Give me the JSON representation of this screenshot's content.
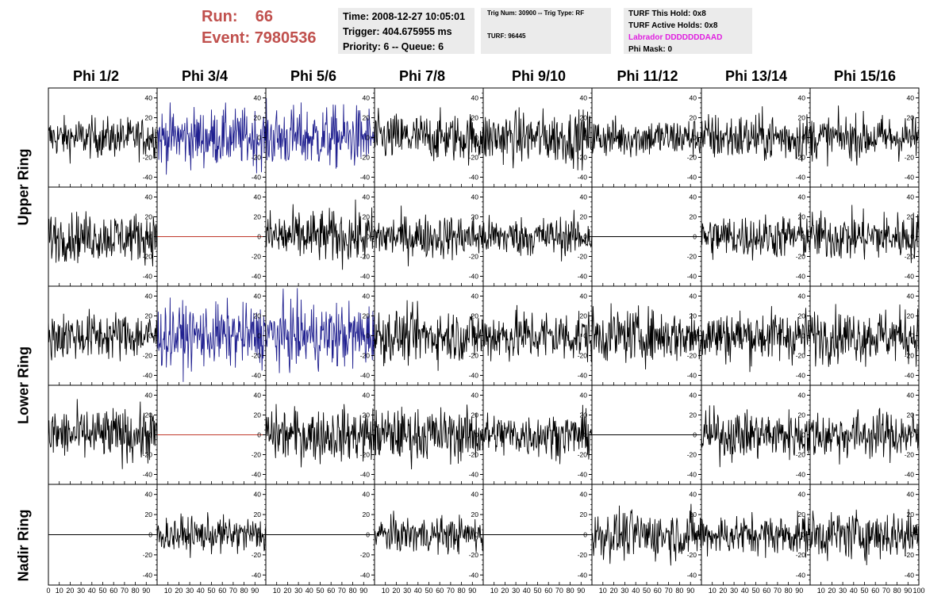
{
  "header": {
    "run_label": "Run:",
    "run_value": "66",
    "event_label": "Event:",
    "event_value": "7980536",
    "time_line": "Time: 2008-12-27 10:05:01",
    "trigger_line": "Trigger: 404.675955 ms",
    "priority_line": "Priority: 6 -- Queue: 6",
    "trig_num_line": "Trig Num: 30900 -- Trig Type: RF",
    "turf_line": "TURF: 96445",
    "turf_this_hold": "TURF This Hold: 0x8",
    "turf_active_holds": "TURF Active Holds: 0x8",
    "labrador": "Labrador DDDDDDDAAD",
    "phi_mask": "Phi Mask: 0"
  },
  "columns": [
    "Phi 1/2",
    "Phi 3/4",
    "Phi 5/6",
    "Phi 7/8",
    "Phi 9/10",
    "Phi 11/12",
    "Phi 13/14",
    "Phi 15/16"
  ],
  "rings": [
    "Upper Ring",
    "Lower Ring",
    "Nadir Ring"
  ],
  "colors": {
    "black_trace": "#000000",
    "blue_trace": "#1f1f8f",
    "red_trace": "#c0392b",
    "run_text": "#c0504d",
    "labrador_text": "#e020e0",
    "box_bg": "#ebebeb"
  },
  "chart_data": {
    "type": "line",
    "grid": "8 columns x 5 rows of waveform panels",
    "x_ticks": [
      0,
      10,
      20,
      30,
      40,
      50,
      60,
      70,
      80,
      90,
      100
    ],
    "x_tick_labels_bottom": [
      "0",
      "10",
      "20",
      "30",
      "40",
      "50",
      "60",
      "70",
      "80",
      "90",
      "10",
      "20",
      "30",
      "40",
      "50",
      "60",
      "70",
      "80",
      "90",
      "100"
    ],
    "xlim": [
      0,
      100
    ],
    "y_ticks": [
      -40,
      -20,
      0,
      20,
      40
    ],
    "ylim": [
      -50,
      50
    ],
    "y_axis_side": "right",
    "panels": [
      [
        {
          "trace": "black",
          "amplitude": 18
        },
        {
          "trace": "blue",
          "amplitude": 26
        },
        {
          "trace": "blue",
          "amplitude": 28
        },
        {
          "trace": "black",
          "amplitude": 22
        },
        {
          "trace": "black",
          "amplitude": 24
        },
        {
          "trace": "black",
          "amplitude": 18
        },
        {
          "trace": "black",
          "amplitude": 22
        },
        {
          "trace": "black",
          "amplitude": 20
        }
      ],
      [
        {
          "trace": "black",
          "amplitude": 22
        },
        {
          "trace": "red_flat",
          "amplitude": 0
        },
        {
          "trace": "black",
          "amplitude": 24
        },
        {
          "trace": "black",
          "amplitude": 20
        },
        {
          "trace": "black",
          "amplitude": 18
        },
        {
          "trace": "black_flat",
          "amplitude": 0
        },
        {
          "trace": "black",
          "amplitude": 20
        },
        {
          "trace": "black",
          "amplitude": 22
        }
      ],
      [
        {
          "trace": "black",
          "amplitude": 22
        },
        {
          "trace": "blue",
          "amplitude": 28
        },
        {
          "trace": "blue",
          "amplitude": 30
        },
        {
          "trace": "black",
          "amplitude": 24
        },
        {
          "trace": "black",
          "amplitude": 24
        },
        {
          "trace": "black",
          "amplitude": 24
        },
        {
          "trace": "black",
          "amplitude": 24
        },
        {
          "trace": "black",
          "amplitude": 24
        }
      ],
      [
        {
          "trace": "black",
          "amplitude": 24
        },
        {
          "trace": "red_flat",
          "amplitude": 0
        },
        {
          "trace": "black",
          "amplitude": 24
        },
        {
          "trace": "black",
          "amplitude": 24
        },
        {
          "trace": "black",
          "amplitude": 20
        },
        {
          "trace": "black_flat",
          "amplitude": 0
        },
        {
          "trace": "black",
          "amplitude": 22
        },
        {
          "trace": "black",
          "amplitude": 22
        }
      ],
      [
        {
          "trace": "black_flat",
          "amplitude": 0
        },
        {
          "trace": "black",
          "amplitude": 16
        },
        {
          "trace": "black_flat",
          "amplitude": 0
        },
        {
          "trace": "black",
          "amplitude": 16
        },
        {
          "trace": "black_flat",
          "amplitude": 0
        },
        {
          "trace": "black",
          "amplitude": 22
        },
        {
          "trace": "black",
          "amplitude": 18
        },
        {
          "trace": "black",
          "amplitude": 22
        }
      ]
    ]
  }
}
